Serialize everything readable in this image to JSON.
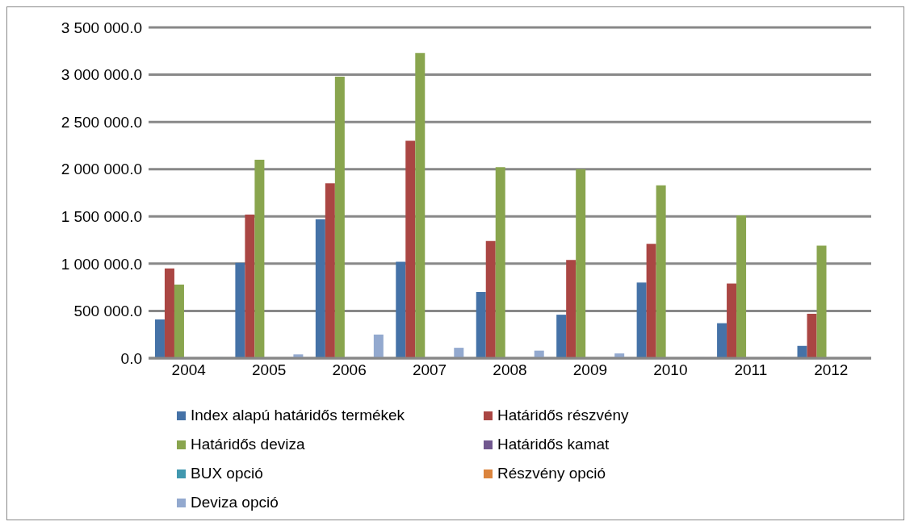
{
  "chart_data": {
    "type": "bar",
    "categories": [
      "2004",
      "2005",
      "2006",
      "2007",
      "2008",
      "2009",
      "2010",
      "2011",
      "2012"
    ],
    "series": [
      {
        "name": "Index alapú határidős termékek",
        "color": "#4572a7",
        "values": [
          410000,
          1010000,
          1470000,
          1020000,
          700000,
          460000,
          800000,
          370000,
          130000
        ]
      },
      {
        "name": "Határidős részvény",
        "color": "#aa4643",
        "values": [
          950000,
          1520000,
          1850000,
          2300000,
          1240000,
          1040000,
          1210000,
          790000,
          470000
        ]
      },
      {
        "name": "Határidős deviza",
        "color": "#89a54e",
        "values": [
          780000,
          2100000,
          2980000,
          3230000,
          2020000,
          2000000,
          1830000,
          1510000,
          1190000
        ]
      },
      {
        "name": "Határidős kamat",
        "color": "#71588f",
        "values": [
          0,
          0,
          0,
          0,
          0,
          0,
          0,
          0,
          0
        ]
      },
      {
        "name": "BUX opció",
        "color": "#4198af",
        "values": [
          0,
          0,
          0,
          0,
          0,
          0,
          0,
          0,
          0
        ]
      },
      {
        "name": "Részvény opció",
        "color": "#db843d",
        "values": [
          0,
          0,
          0,
          0,
          0,
          0,
          0,
          0,
          0
        ]
      },
      {
        "name": "Deviza opció",
        "color": "#93a9cf",
        "values": [
          10000,
          40000,
          250000,
          110000,
          80000,
          50000,
          10000,
          10000,
          0
        ]
      }
    ],
    "ylim": [
      0,
      3500000
    ],
    "yticks": [
      {
        "value": 0,
        "label": "0.0"
      },
      {
        "value": 500000,
        "label": "500 000.0"
      },
      {
        "value": 1000000,
        "label": "1 000 000.0"
      },
      {
        "value": 1500000,
        "label": "1 500 000.0"
      },
      {
        "value": 2000000,
        "label": "2 000 000.0"
      },
      {
        "value": 2500000,
        "label": "2 500 000.0"
      },
      {
        "value": 3000000,
        "label": "3 000 000.0"
      },
      {
        "value": 3500000,
        "label": "3 500 000.0"
      }
    ],
    "grid": "y",
    "legend": "bottom"
  }
}
